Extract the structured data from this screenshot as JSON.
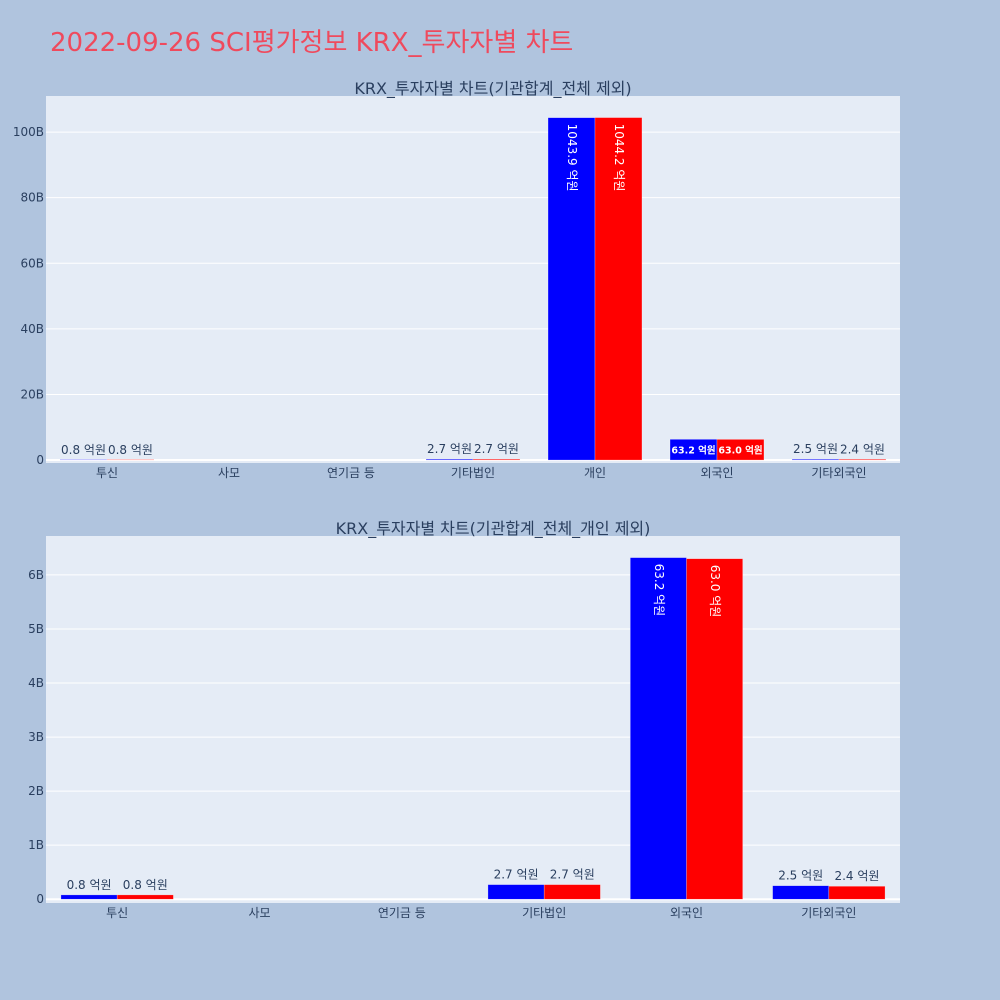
{
  "page_title": "2022-09-26 SCI평가정보 KRX_투자자별 차트",
  "colors": {
    "series_a": "#0000ff",
    "series_b": "#ff0000",
    "plot_bg": "#e5ecf6",
    "paper_bg": "#b0c4de",
    "title": "#ef4a5d"
  },
  "chart_data": [
    {
      "type": "bar",
      "title": "KRX_투자자별 차트(기관합계_전체 제외)",
      "categories": [
        "투신",
        "사모",
        "연기금 등",
        "기타법인",
        "개인",
        "외국인",
        "기타외국인"
      ],
      "y_unit": "B",
      "ylim": [
        -0.9,
        111
      ],
      "yticks": [
        0,
        20,
        40,
        60,
        80,
        100
      ],
      "ytick_labels": [
        "0",
        "20B",
        "40B",
        "60B",
        "80B",
        "100B"
      ],
      "grid": true,
      "series": [
        {
          "color": "#0000ff",
          "values": [
            0.08,
            0,
            0,
            0.27,
            104.39,
            6.32,
            0.25
          ],
          "labels": [
            "0.8 억원",
            "",
            "",
            "2.7 억원",
            "1043.9 억원",
            "63.2 억원",
            "2.5 억원"
          ]
        },
        {
          "color": "#ff0000",
          "values": [
            0.08,
            0,
            0,
            0.27,
            104.42,
            6.3,
            0.24
          ],
          "labels": [
            "0.8 억원",
            "",
            "",
            "2.7 억원",
            "1044.2 억원",
            "63.0 억원",
            "2.4 억원"
          ]
        }
      ]
    },
    {
      "type": "bar",
      "title": "KRX_투자자별 차트(기관합계_전체_개인 제외)",
      "categories": [
        "투신",
        "사모",
        "연기금 등",
        "기타법인",
        "외국인",
        "기타외국인"
      ],
      "y_unit": "B",
      "ylim": [
        -0.07,
        6.72
      ],
      "yticks": [
        0,
        1,
        2,
        3,
        4,
        5,
        6
      ],
      "ytick_labels": [
        "0",
        "1B",
        "2B",
        "3B",
        "4B",
        "5B",
        "6B"
      ],
      "grid": true,
      "series": [
        {
          "color": "#0000ff",
          "values": [
            0.08,
            0,
            0,
            0.27,
            6.32,
            0.25
          ],
          "labels": [
            "0.8 억원",
            "",
            "",
            "2.7 억원",
            "63.2 억원",
            "2.5 억원"
          ]
        },
        {
          "color": "#ff0000",
          "values": [
            0.08,
            0,
            0,
            0.27,
            6.3,
            0.24
          ],
          "labels": [
            "0.8 억원",
            "",
            "",
            "2.7 억원",
            "63.0 억원",
            "2.4 억원"
          ]
        }
      ]
    }
  ]
}
